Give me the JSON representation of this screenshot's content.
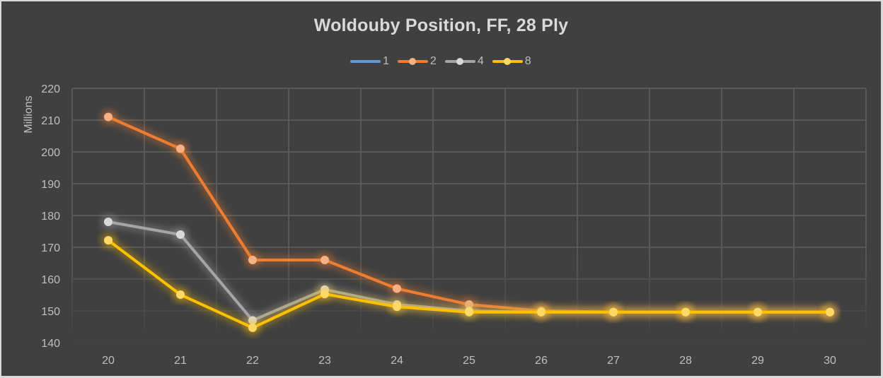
{
  "chart_data": {
    "type": "line",
    "title": "Woldouby Position, FF, 28 Ply",
    "xlabel": "",
    "ylabel": "Millions",
    "x": [
      20,
      21,
      22,
      23,
      24,
      25,
      26,
      27,
      28,
      29,
      30
    ],
    "ylim": [
      140,
      220
    ],
    "yticks": [
      140,
      150,
      160,
      170,
      180,
      190,
      200,
      210,
      220
    ],
    "grid": true,
    "legend_position": "top",
    "series": [
      {
        "name": "1",
        "color": "#5b9bd5",
        "markers": false,
        "values": []
      },
      {
        "name": "2",
        "color": "#ed7d31",
        "marker_color": "#f4b183",
        "markers": true,
        "values": [
          211,
          201,
          166,
          166,
          157,
          152,
          150,
          149.6,
          149.6,
          149.6,
          149.6
        ]
      },
      {
        "name": "4",
        "color": "#a5a5a5",
        "marker_color": "#d9d9d9",
        "markers": true,
        "values": [
          178,
          174,
          147,
          156.7,
          152,
          150,
          149.6,
          149.6,
          149.6,
          149.6,
          149.6
        ]
      },
      {
        "name": "8",
        "color": "#ffc000",
        "marker_color": "#ffd966",
        "markers": true,
        "values": [
          172.2,
          155.1,
          144.7,
          155.3,
          151.3,
          149.6,
          149.6,
          149.6,
          149.6,
          149.6,
          149.6
        ]
      }
    ]
  },
  "colors": {
    "background": "#404040",
    "gridline": "#595959",
    "text": "#bfbfbf",
    "title": "#d9d9d9"
  }
}
